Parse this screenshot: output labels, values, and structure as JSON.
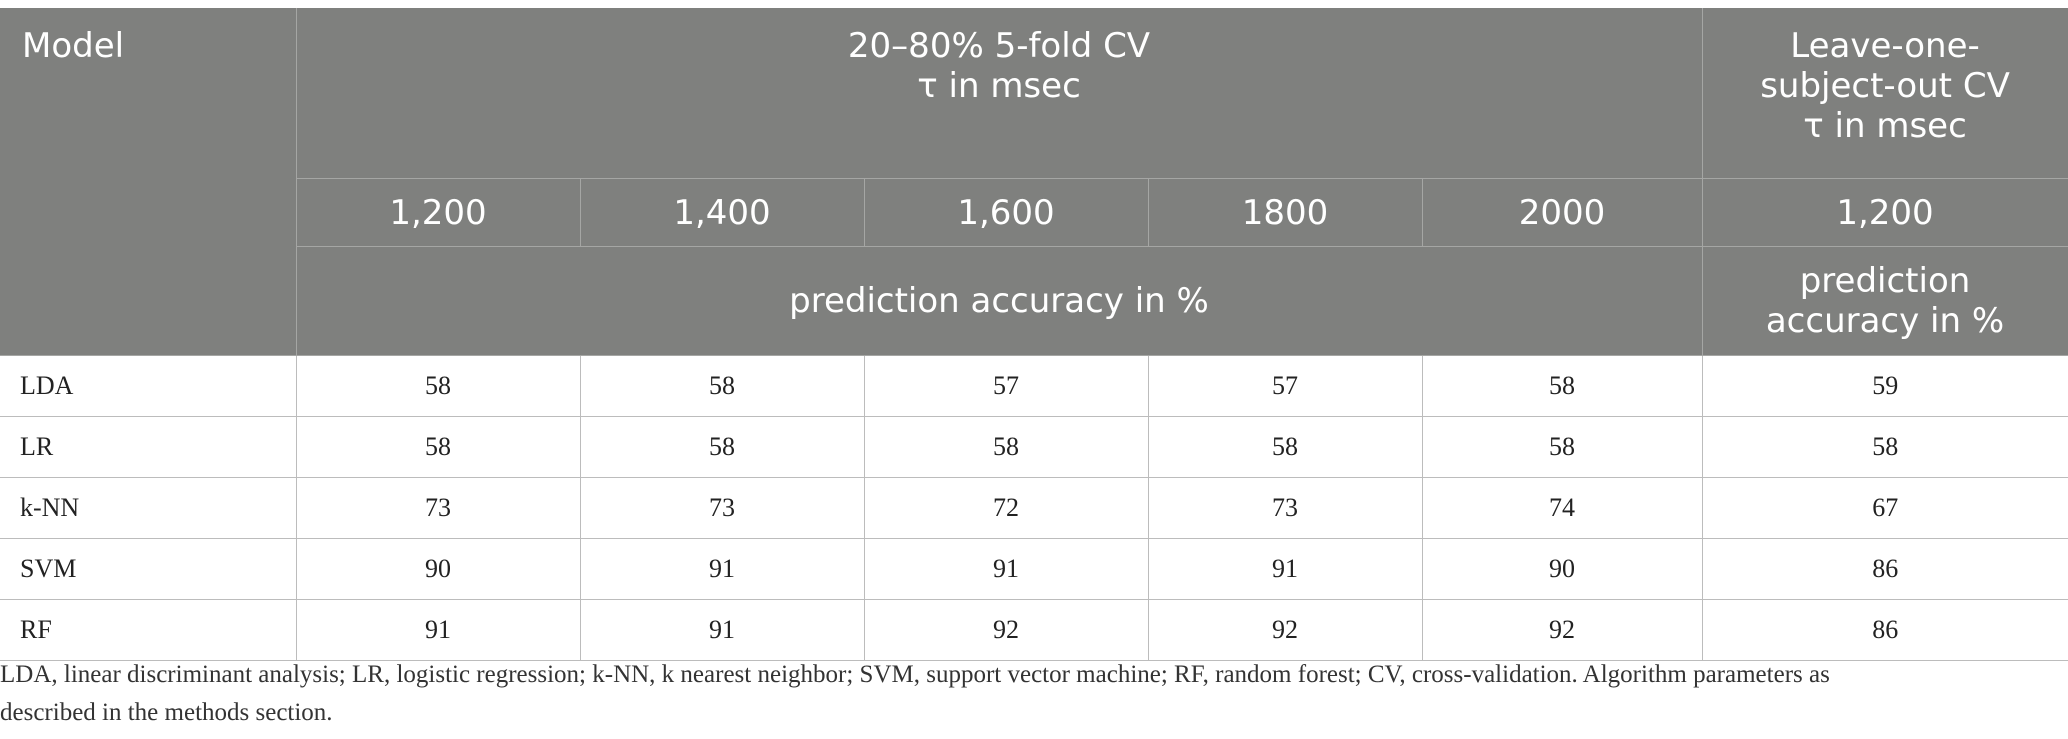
{
  "table": {
    "header": {
      "model_label": "Model",
      "cv_group_line1": "20–80% 5-fold CV",
      "cv_group_line2": "τ in msec",
      "loso_group_line1": "Leave-one-",
      "loso_group_line2": "subject-out CV",
      "loso_group_line3": "τ in msec",
      "tau_values": [
        "1,200",
        "1,400",
        "1,600",
        "1800",
        "2000",
        "1,200"
      ],
      "cv_metric": "prediction accuracy in %",
      "loso_metric_line1": "prediction",
      "loso_metric_line2": "accuracy in %"
    },
    "rows": [
      {
        "model": "LDA",
        "values": [
          "58",
          "58",
          "57",
          "57",
          "58",
          "59"
        ]
      },
      {
        "model": "LR",
        "values": [
          "58",
          "58",
          "58",
          "58",
          "58",
          "58"
        ]
      },
      {
        "model": "k-NN",
        "values": [
          "73",
          "73",
          "72",
          "73",
          "74",
          "67"
        ]
      },
      {
        "model": "SVM",
        "values": [
          "90",
          "91",
          "91",
          "91",
          "90",
          "86"
        ]
      },
      {
        "model": "RF",
        "values": [
          "91",
          "91",
          "92",
          "92",
          "92",
          "86"
        ]
      }
    ]
  },
  "footnote": {
    "line1": "LDA, linear discriminant analysis; LR, logistic regression; k-NN, k nearest neighbor; SVM, support vector machine; RF, random forest; CV, cross-validation. Algorithm parameters as",
    "line2": "described in the methods section."
  }
}
